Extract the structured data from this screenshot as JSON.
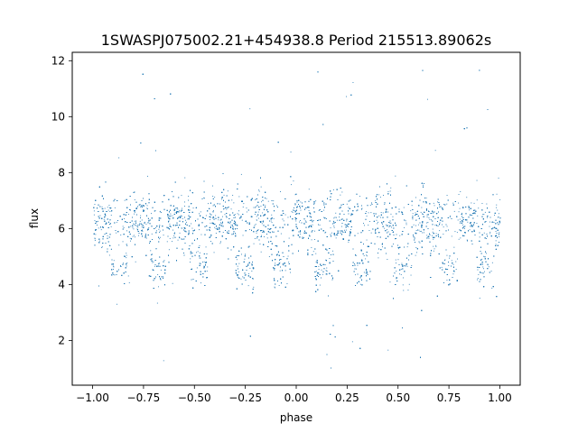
{
  "chart_data": {
    "type": "scatter",
    "title": "1SWASPJ075002.21+454938.8 Period 215513.89062s",
    "xlabel": "phase",
    "ylabel": "flux",
    "xlim": [
      -1.1,
      1.1
    ],
    "ylim": [
      0.4,
      12.3
    ],
    "xticks": [
      -1.0,
      -0.75,
      -0.5,
      -0.25,
      0.0,
      0.25,
      0.5,
      0.75,
      1.0
    ],
    "xtick_labels": [
      "−1.00",
      "−0.75",
      "−0.50",
      "−0.25",
      "0.00",
      "0.25",
      "0.50",
      "0.75",
      "1.00"
    ],
    "yticks": [
      2,
      4,
      6,
      8,
      10,
      12
    ],
    "ytick_labels": [
      "2",
      "4",
      "6",
      "8",
      "10",
      "12"
    ],
    "grid": false,
    "marker_color": "#1f77b4",
    "phase_range": [
      -1.0,
      1.0
    ],
    "baseline_flux": 6.3,
    "dip_flux": 4.6,
    "dip_centers": [
      -0.865,
      -0.68,
      -0.48,
      -0.255,
      -0.075,
      0.135,
      0.32,
      0.52,
      0.745,
      0.925
    ],
    "dip_half_width": 0.045,
    "outlier_flux_range": [
      0.9,
      11.7
    ]
  }
}
